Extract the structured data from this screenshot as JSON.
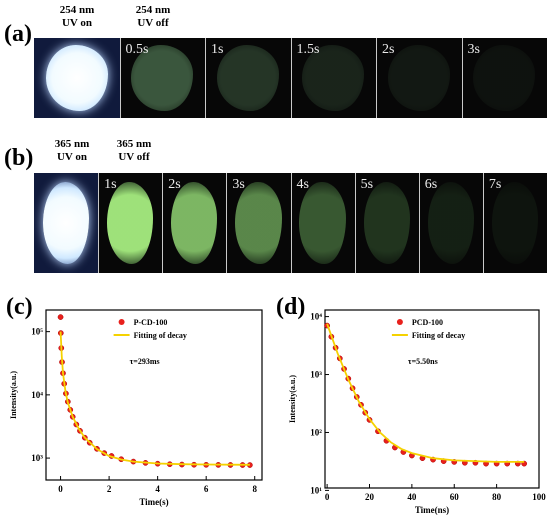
{
  "panels": {
    "a": {
      "label": "(a)",
      "on_header": [
        "254 nm",
        "UV on"
      ],
      "off_header": [
        "254 nm",
        "UV off"
      ],
      "times": [
        "0.5s",
        "1s",
        "1.5s",
        "2s",
        "3s"
      ],
      "glow_levels": [
        0.55,
        0.32,
        0.2,
        0.12,
        0.08
      ]
    },
    "b": {
      "label": "(b)",
      "on_header": [
        "365 nm",
        "UV on"
      ],
      "off_header": [
        "365 nm",
        "UV off"
      ],
      "times": [
        "1s",
        "2s",
        "3s",
        "4s",
        "5s",
        "6s",
        "7s"
      ],
      "glow_levels": [
        0.95,
        0.8,
        0.62,
        0.42,
        0.25,
        0.14,
        0.08
      ]
    }
  },
  "chart_data": [
    {
      "panel_label": "(c)",
      "type": "scatter",
      "xlabel": "Time(s)",
      "ylabel": "Intensity(a.u.)",
      "xlim": [
        -0.6,
        8.3
      ],
      "ylim": [
        450,
        220000
      ],
      "yscale": "log",
      "xticks": [
        0,
        2,
        4,
        6,
        8
      ],
      "yticks": [
        1000,
        10000,
        100000
      ],
      "ytick_labels": [
        "10³",
        "10⁴",
        "10⁵"
      ],
      "series": [
        {
          "name": "P-CD-100",
          "role": "points",
          "color": "#e8201c",
          "x": [
            0,
            0.01,
            0.03,
            0.06,
            0.1,
            0.15,
            0.22,
            0.3,
            0.4,
            0.5,
            0.65,
            0.8,
            1.0,
            1.2,
            1.5,
            1.8,
            2.1,
            2.5,
            3,
            3.5,
            4,
            4.5,
            5,
            5.5,
            6,
            6.5,
            7,
            7.5,
            7.8
          ],
          "y": [
            170000,
            95000,
            55000,
            33000,
            22000,
            15000,
            10500,
            7800,
            5800,
            4500,
            3400,
            2700,
            2100,
            1750,
            1400,
            1200,
            1080,
            960,
            880,
            840,
            815,
            800,
            790,
            785,
            782,
            780,
            778,
            777,
            776
          ]
        },
        {
          "name": "Fitting of decay",
          "role": "fit",
          "color": "#f5d200",
          "x": [
            0,
            0.05,
            0.1,
            0.2,
            0.3,
            0.5,
            0.75,
            1,
            1.5,
            2,
            2.5,
            3,
            4,
            5,
            6,
            7,
            7.8
          ],
          "y": [
            100000,
            40000,
            22000,
            11500,
            7600,
            4500,
            2900,
            2100,
            1380,
            1080,
            950,
            880,
            820,
            800,
            790,
            785,
            782
          ]
        }
      ],
      "annotation": "τ=293ms",
      "legend_position": "top-right"
    },
    {
      "panel_label": "(d)",
      "type": "scatter",
      "xlabel": "Time(ns)",
      "ylabel": "Intensity(a.u.)",
      "xlim": [
        -1,
        100
      ],
      "ylim": [
        11,
        13000
      ],
      "yscale": "log",
      "xticks": [
        0,
        20,
        40,
        60,
        80,
        100
      ],
      "yticks": [
        10,
        100,
        1000,
        10000
      ],
      "ytick_labels": [
        "10¹",
        "10²",
        "10³",
        "10⁴"
      ],
      "series": [
        {
          "name": "PCD-100",
          "role": "points",
          "color": "#e8201c",
          "x": [
            0,
            2,
            4,
            6,
            8,
            10,
            12,
            14,
            16,
            18,
            20,
            24,
            28,
            32,
            36,
            40,
            45,
            50,
            55,
            60,
            65,
            70,
            75,
            80,
            85,
            90,
            93
          ],
          "y": [
            7000,
            4500,
            2900,
            1900,
            1250,
            850,
            580,
            410,
            300,
            220,
            165,
            105,
            72,
            55,
            46,
            40,
            36,
            34,
            32,
            31,
            30,
            30,
            29,
            29,
            29,
            29,
            29
          ]
        },
        {
          "name": "Fitting of decay",
          "role": "fit",
          "color": "#f5d200",
          "x": [
            0,
            5,
            10,
            15,
            20,
            25,
            30,
            35,
            40,
            50,
            60,
            70,
            80,
            93
          ],
          "y": [
            7500,
            2300,
            820,
            340,
            170,
            100,
            68,
            52,
            44,
            36,
            33,
            32,
            31,
            31
          ]
        }
      ],
      "annotation": "τ=5.50ns",
      "legend_position": "top-right"
    }
  ]
}
